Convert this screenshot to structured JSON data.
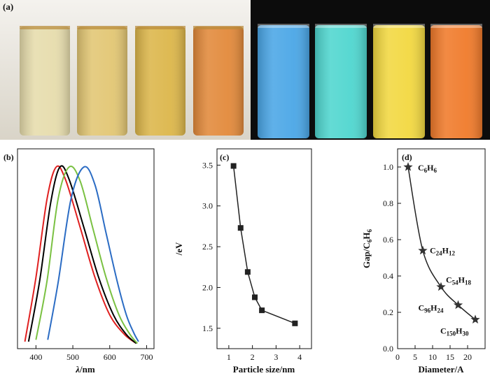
{
  "panels": {
    "a": {
      "label": "(a)",
      "daylight_vials": [
        "#e6dcac",
        "#e2c673",
        "#dcb64a",
        "#e2893a"
      ],
      "uv_vials": [
        "#4aa6e6",
        "#4fd6cf",
        "#f2d840",
        "#f07a2a"
      ]
    }
  },
  "chart_data": [
    {
      "id": "b",
      "label": "(b)",
      "type": "line",
      "xlabel_symbol": "λ",
      "xlabel_unit": "/nm",
      "ylabel": "",
      "xlim": [
        350,
        720
      ],
      "xticks": [
        400,
        500,
        600,
        700
      ],
      "series": [
        {
          "color": "#e02020",
          "x": [
            370,
            400,
            430,
            455,
            480,
            520,
            560,
            600,
            640,
            672
          ],
          "y": [
            0.02,
            0.38,
            0.82,
            1.0,
            0.93,
            0.66,
            0.38,
            0.17,
            0.06,
            0.01
          ]
        },
        {
          "color": "#000000",
          "x": [
            380,
            410,
            440,
            465,
            490,
            530,
            570,
            610,
            645,
            672
          ],
          "y": [
            0.02,
            0.36,
            0.8,
            1.0,
            0.93,
            0.66,
            0.38,
            0.17,
            0.06,
            0.01
          ]
        },
        {
          "color": "#7ac142",
          "x": [
            400,
            430,
            460,
            490,
            520,
            555,
            590,
            625,
            655,
            675
          ],
          "y": [
            0.03,
            0.36,
            0.82,
            1.0,
            0.92,
            0.65,
            0.38,
            0.17,
            0.06,
            0.01
          ]
        },
        {
          "color": "#2b6cc4",
          "x": [
            432,
            460,
            495,
            530,
            560,
            590,
            620,
            645,
            665,
            678
          ],
          "y": [
            0.03,
            0.35,
            0.82,
            1.0,
            0.9,
            0.63,
            0.36,
            0.17,
            0.07,
            0.02
          ]
        }
      ]
    },
    {
      "id": "c",
      "label": "(c)",
      "type": "line",
      "xlabel": "Particle size/nm",
      "ylabel": "/eV",
      "xlim": [
        0.5,
        4.5
      ],
      "ylim": [
        1.25,
        3.7
      ],
      "xticks": [
        1,
        2,
        3,
        4
      ],
      "yticks": [
        1.5,
        2.0,
        2.5,
        3.0,
        3.5
      ],
      "ytick_labels": [
        "1.5",
        "2.0",
        "2.5",
        "3.0",
        "3.5"
      ],
      "x": [
        1.2,
        1.5,
        1.8,
        2.1,
        2.4,
        3.8
      ],
      "y": [
        3.49,
        2.73,
        2.19,
        1.88,
        1.72,
        1.56
      ]
    },
    {
      "id": "d",
      "label": "(d)",
      "type": "line",
      "xlabel": "Diameter/A",
      "ylabel_base": "Gap/C",
      "ylabel_sub1": "6",
      "ylabel_mid": "H",
      "ylabel_sub2": "6",
      "xlim": [
        0,
        25
      ],
      "ylim": [
        0,
        1.1
      ],
      "xticks": [
        0,
        5,
        10,
        15,
        20
      ],
      "yticks": [
        0.0,
        0.2,
        0.4,
        0.6,
        0.8,
        1.0
      ],
      "ytick_labels": [
        "0.0",
        "0.2",
        "0.4",
        "0.6",
        "0.8",
        "1.0"
      ],
      "x": [
        3.0,
        7.2,
        12.4,
        17.3,
        22.2
      ],
      "y": [
        1.0,
        0.54,
        0.34,
        0.24,
        0.16
      ],
      "point_labels": [
        {
          "c": "C",
          "n1": "6",
          "h": "H",
          "n2": "6"
        },
        {
          "c": "C",
          "n1": "24",
          "h": "H",
          "n2": "12"
        },
        {
          "c": "C",
          "n1": "54",
          "h": "H",
          "n2": "18"
        },
        {
          "c": "C",
          "n1": "96",
          "h": "H",
          "n2": "24"
        },
        {
          "c": "C",
          "n1": "150",
          "h": "H",
          "n2": "30"
        }
      ]
    }
  ]
}
